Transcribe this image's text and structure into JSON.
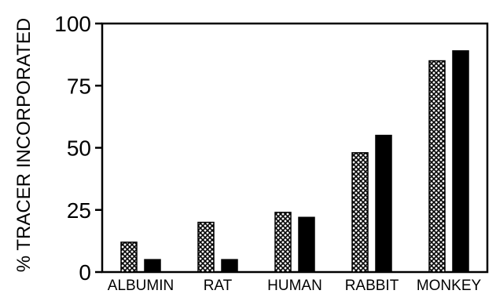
{
  "chart_data": {
    "type": "bar",
    "title": "",
    "xlabel": "",
    "ylabel": "% TRACER INCORPORATED",
    "ylim": [
      0,
      100
    ],
    "yticks": [
      0,
      25,
      50,
      75,
      100
    ],
    "grid": false,
    "categories": [
      "ALBUMIN",
      "RAT",
      "HUMAN",
      "RABBIT",
      "MONKEY"
    ],
    "series": [
      {
        "values": [
          12,
          20,
          24,
          48,
          85
        ],
        "pattern": "crosshatch",
        "color": "#000000"
      },
      {
        "values": [
          5,
          5,
          22,
          55,
          89
        ],
        "pattern": "solid",
        "color": "#000000"
      }
    ]
  }
}
